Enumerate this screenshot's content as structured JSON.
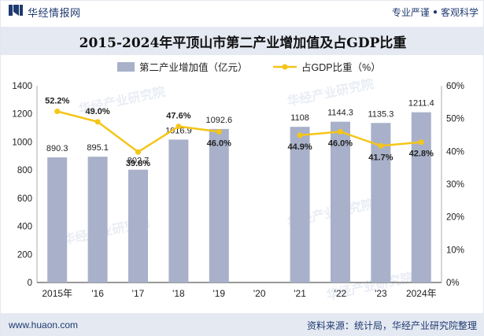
{
  "header": {
    "brand_name": "华经情报网",
    "motto_left": "专业严谨",
    "motto_sep": "●",
    "motto_right": "客观科学",
    "logo_color": "#1f3a70"
  },
  "title": "2015-2024年平顶山市第二产业增加值及占GDP比重",
  "watermark": "华经产业研究院",
  "footer": {
    "website": "www.huaon.com",
    "source": "资料来源：统计局，华经产业研究院整理"
  },
  "chart_data": {
    "type": "bar",
    "categories": [
      "2015年",
      "'16",
      "'17",
      "'18",
      "'19",
      "'20",
      "'21",
      "'22",
      "'23",
      "2024年"
    ],
    "series": [
      {
        "name": "第二产业增加值（亿元）",
        "type": "bar",
        "axis": "left",
        "color": "#a8b1c9",
        "values": [
          890.3,
          895.1,
          802.7,
          1016.9,
          1092.6,
          null,
          1108,
          1144.3,
          1135.3,
          1211.4
        ],
        "labels": [
          "890.3",
          "895.1",
          "802.7",
          "1016.9",
          "1092.6",
          null,
          "1108",
          "1144.3",
          "1135.3",
          "1211.4"
        ]
      },
      {
        "name": "占GDP比重（%）",
        "type": "line",
        "axis": "right",
        "color": "#f5c518",
        "values": [
          52.2,
          49.0,
          39.8,
          47.6,
          46.0,
          null,
          44.9,
          46.0,
          41.7,
          42.8
        ],
        "labels": [
          "52.2%",
          "49.0%",
          "39.8%",
          "47.6%",
          "46.0%",
          null,
          "44.9%",
          "46.0%",
          "41.7%",
          "42.8%"
        ]
      }
    ],
    "y_left": {
      "lim": [
        0,
        1400
      ],
      "ticks": [
        "0",
        "200",
        "400",
        "600",
        "800",
        "1000",
        "1200",
        "1400"
      ]
    },
    "y_right": {
      "lim": [
        0,
        60
      ],
      "ticks": [
        "0%",
        "10%",
        "20%",
        "30%",
        "40%",
        "50%",
        "60%"
      ]
    },
    "grid": false,
    "legend_position": "top-center"
  }
}
